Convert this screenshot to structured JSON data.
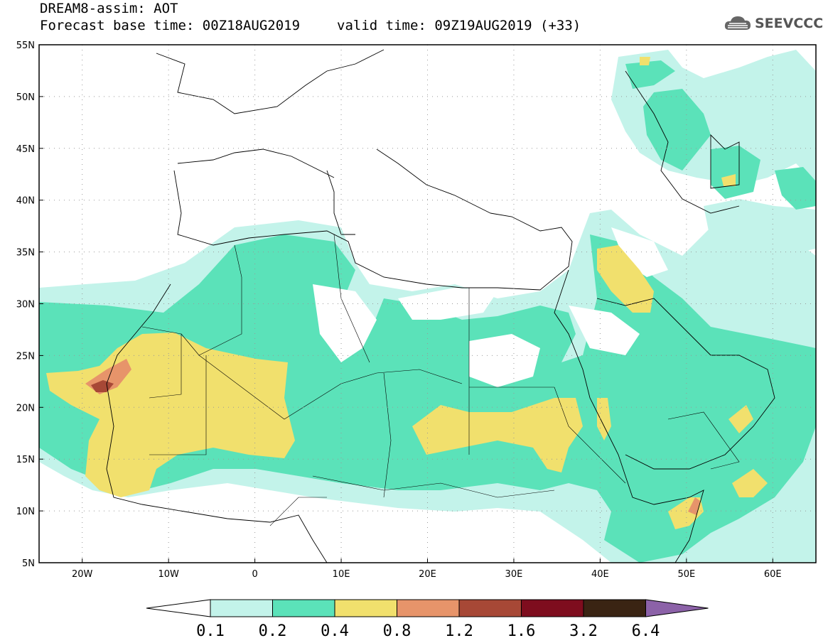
{
  "header": {
    "line1": "DREAM8-assim: AOT",
    "base_time": "Forecast base time: 00Z18AUG2019",
    "valid_time": "valid time: 09Z19AUG2019 (+33)"
  },
  "logo": {
    "text": "SEEVCCC",
    "icon": "cloud-icon"
  },
  "map": {
    "projection": "lat-lon",
    "lon_range": [
      -25,
      65
    ],
    "lat_range": [
      5,
      55
    ],
    "lat_ticks": [
      "5N",
      "10N",
      "15N",
      "20N",
      "25N",
      "30N",
      "35N",
      "40N",
      "45N",
      "50N",
      "55N"
    ],
    "lon_ticks": [
      "20W",
      "10W",
      "0",
      "10E",
      "20E",
      "30E",
      "40E",
      "50E",
      "60E"
    ],
    "gridlines": "dotted"
  },
  "colorbar": {
    "labels": [
      "0.1",
      "0.2",
      "0.4",
      "0.8",
      "1.2",
      "1.6",
      "3.2",
      "6.4"
    ],
    "colors": [
      "#c3f3ea",
      "#5be2b9",
      "#f1e06d",
      "#e7946a",
      "#a74836",
      "#7e0d1e",
      "#3a2413",
      "#8c62a8"
    ],
    "under_color": "#ffffff"
  }
}
